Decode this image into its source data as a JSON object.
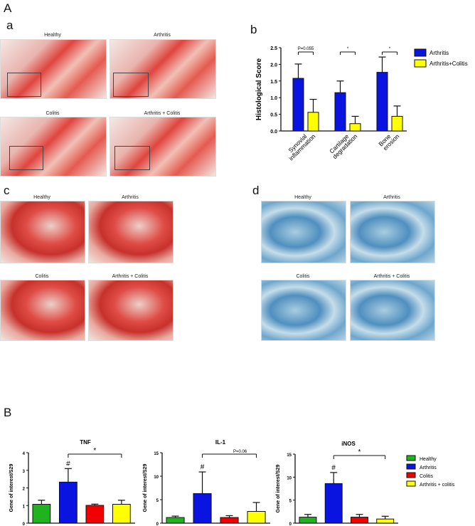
{
  "labels": {
    "A": "A",
    "a": "a",
    "b": "b",
    "c": "c",
    "d": "d",
    "B": "B"
  },
  "panel_a": [
    "Healthy",
    "Arthritis",
    "Colitis",
    "Arthritis + Colitis"
  ],
  "panel_c": [
    "Healthy",
    "Arthritis",
    "Colitis",
    "Arthritis + Colitis"
  ],
  "panel_d": [
    "Healthy",
    "Arthritis",
    "Colitis",
    "Arthritis + Colitis"
  ],
  "chart_data": [
    {
      "type": "bar",
      "id": "histo",
      "title": "",
      "ylabel": "Histological Score",
      "ylim": [
        0,
        2.5
      ],
      "yticks": [
        "0.0",
        "0.5",
        "1.0",
        "1.5",
        "2.0",
        "2.5"
      ],
      "categories": [
        "Synovial inflammation",
        "Cartilage degradation",
        "Bone erosion"
      ],
      "series": [
        {
          "name": "Arthritis",
          "color": "#0a14e0",
          "values": [
            1.58,
            1.15,
            1.76
          ],
          "err_upper": [
            2.01,
            1.5,
            2.22
          ]
        },
        {
          "name": "Arthritis+Colitis",
          "color": "#ffff00",
          "values": [
            0.56,
            0.22,
            0.44
          ],
          "err_upper": [
            0.95,
            0.44,
            0.75
          ]
        }
      ],
      "annotations": [
        "P=0.055",
        "*",
        "*"
      ],
      "legend": "right"
    },
    {
      "type": "bar",
      "id": "tnf",
      "title": "TNF",
      "ylabel": "Gene of interest/S29",
      "ylim": [
        0,
        4
      ],
      "yticks": [
        "0",
        "1",
        "2",
        "3",
        "4"
      ],
      "categories": [
        "Healthy",
        "Arthritis",
        "Colitis",
        "Arthritis + colitis"
      ],
      "values": [
        1.07,
        2.33,
        1.01,
        1.07
      ],
      "err_upper": [
        1.3,
        3.1,
        1.08,
        1.3
      ],
      "marker": "#",
      "bracket": "*"
    },
    {
      "type": "bar",
      "id": "il1",
      "title": "IL-1",
      "ylabel": "Gene of interest/S29",
      "ylim": [
        0,
        15
      ],
      "yticks": [
        "0",
        "5",
        "10",
        "15"
      ],
      "categories": [
        "Healthy",
        "Arthritis",
        "Colitis",
        "Arthritis + colitis"
      ],
      "values": [
        1.2,
        6.3,
        1.2,
        2.5
      ],
      "err_upper": [
        1.5,
        10.9,
        1.6,
        4.4
      ],
      "marker": "#",
      "bracket": "P=0.06"
    },
    {
      "type": "bar",
      "id": "inos",
      "title": "iNOS",
      "ylabel": "Gene of interest/S29",
      "ylim": [
        0,
        15
      ],
      "yticks": [
        "0",
        "5",
        "10",
        "15"
      ],
      "categories": [
        "Healthy",
        "Arthritis",
        "Colitis",
        "Arthritis + colitis"
      ],
      "values": [
        1.3,
        8.6,
        1.3,
        0.9
      ],
      "err_upper": [
        1.9,
        11.0,
        1.9,
        1.5
      ],
      "marker": "#",
      "bracket": "*"
    }
  ],
  "group_legend": [
    {
      "name": "Healthy",
      "color": "#1fb41f"
    },
    {
      "name": "Arthritis",
      "color": "#0a14e0"
    },
    {
      "name": "Colitis",
      "color": "#f00000"
    },
    {
      "name": "Arthritis + colitis",
      "color": "#ffff00"
    }
  ]
}
